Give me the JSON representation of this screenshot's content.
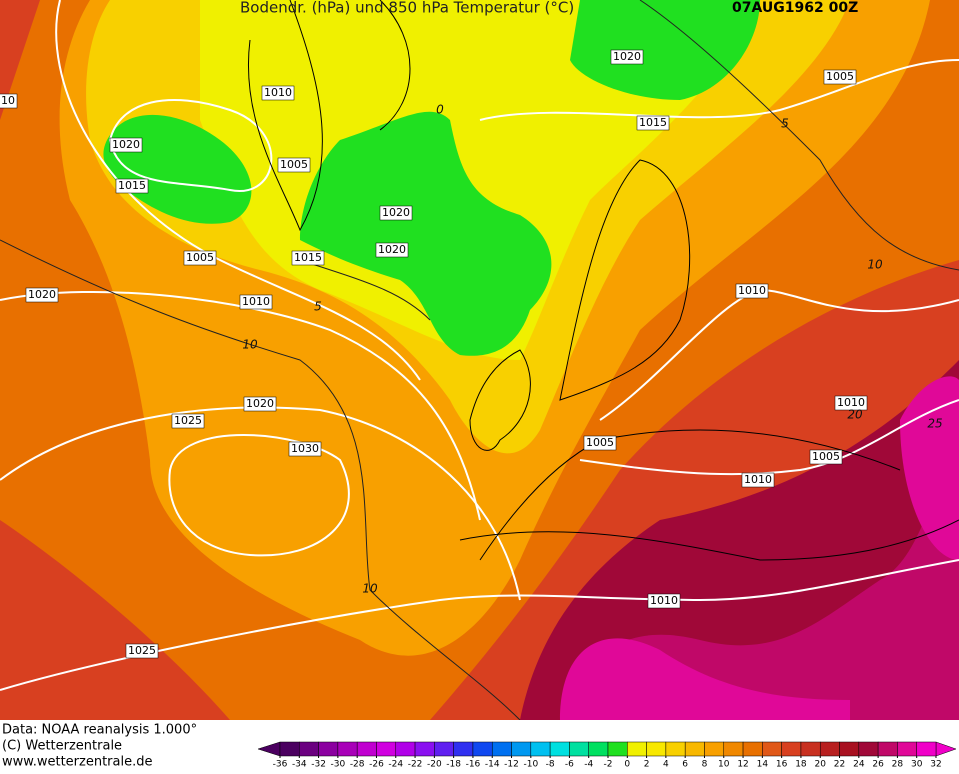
{
  "header": {
    "title": "Bodendr. (hPa) und 850 hPa Temperatur (°C)",
    "date": "07AUG1962 00Z"
  },
  "isobar_labels": [
    1010,
    1020,
    1015,
    1005,
    1020,
    1020,
    1005,
    1015,
    1020,
    1010,
    1020,
    1025,
    1030,
    1020,
    1005,
    1015,
    1010,
    1010,
    1005,
    1005,
    1010,
    1010,
    1025,
    10
  ],
  "temperature_labels": [
    0,
    5,
    10,
    5,
    10,
    20,
    25,
    10
  ],
  "footer": [
    "Data: NOAA reanalysis 1.000°",
    "(C) Wetterzentrale",
    "www.wetterzentrale.de"
  ],
  "colorbar": {
    "ticks": [
      -36,
      -34,
      -32,
      -30,
      -28,
      -26,
      -24,
      -22,
      -20,
      -18,
      -16,
      -14,
      -12,
      -10,
      -8,
      -6,
      -4,
      -2,
      0,
      2,
      4,
      6,
      8,
      10,
      12,
      14,
      16,
      18,
      20,
      22,
      24,
      26,
      28,
      30,
      32
    ],
    "colors": [
      "#4b0060",
      "#6b0080",
      "#8b00a0",
      "#a800b8",
      "#c000d0",
      "#d000e0",
      "#b000e8",
      "#8a10f0",
      "#6020f0",
      "#3030f0",
      "#1048f0",
      "#0070f0",
      "#0098f0",
      "#00c0f0",
      "#00e0e0",
      "#00e0a0",
      "#00e060",
      "#20e020",
      "#f0f000",
      "#f8e800",
      "#f8d000",
      "#f8b800",
      "#f8a000",
      "#f08800",
      "#e87000",
      "#e05818",
      "#d84020",
      "#c83020",
      "#b82020",
      "#a81020",
      "#a00838",
      "#c00868",
      "#e00898",
      "#f000c8"
    ]
  }
}
